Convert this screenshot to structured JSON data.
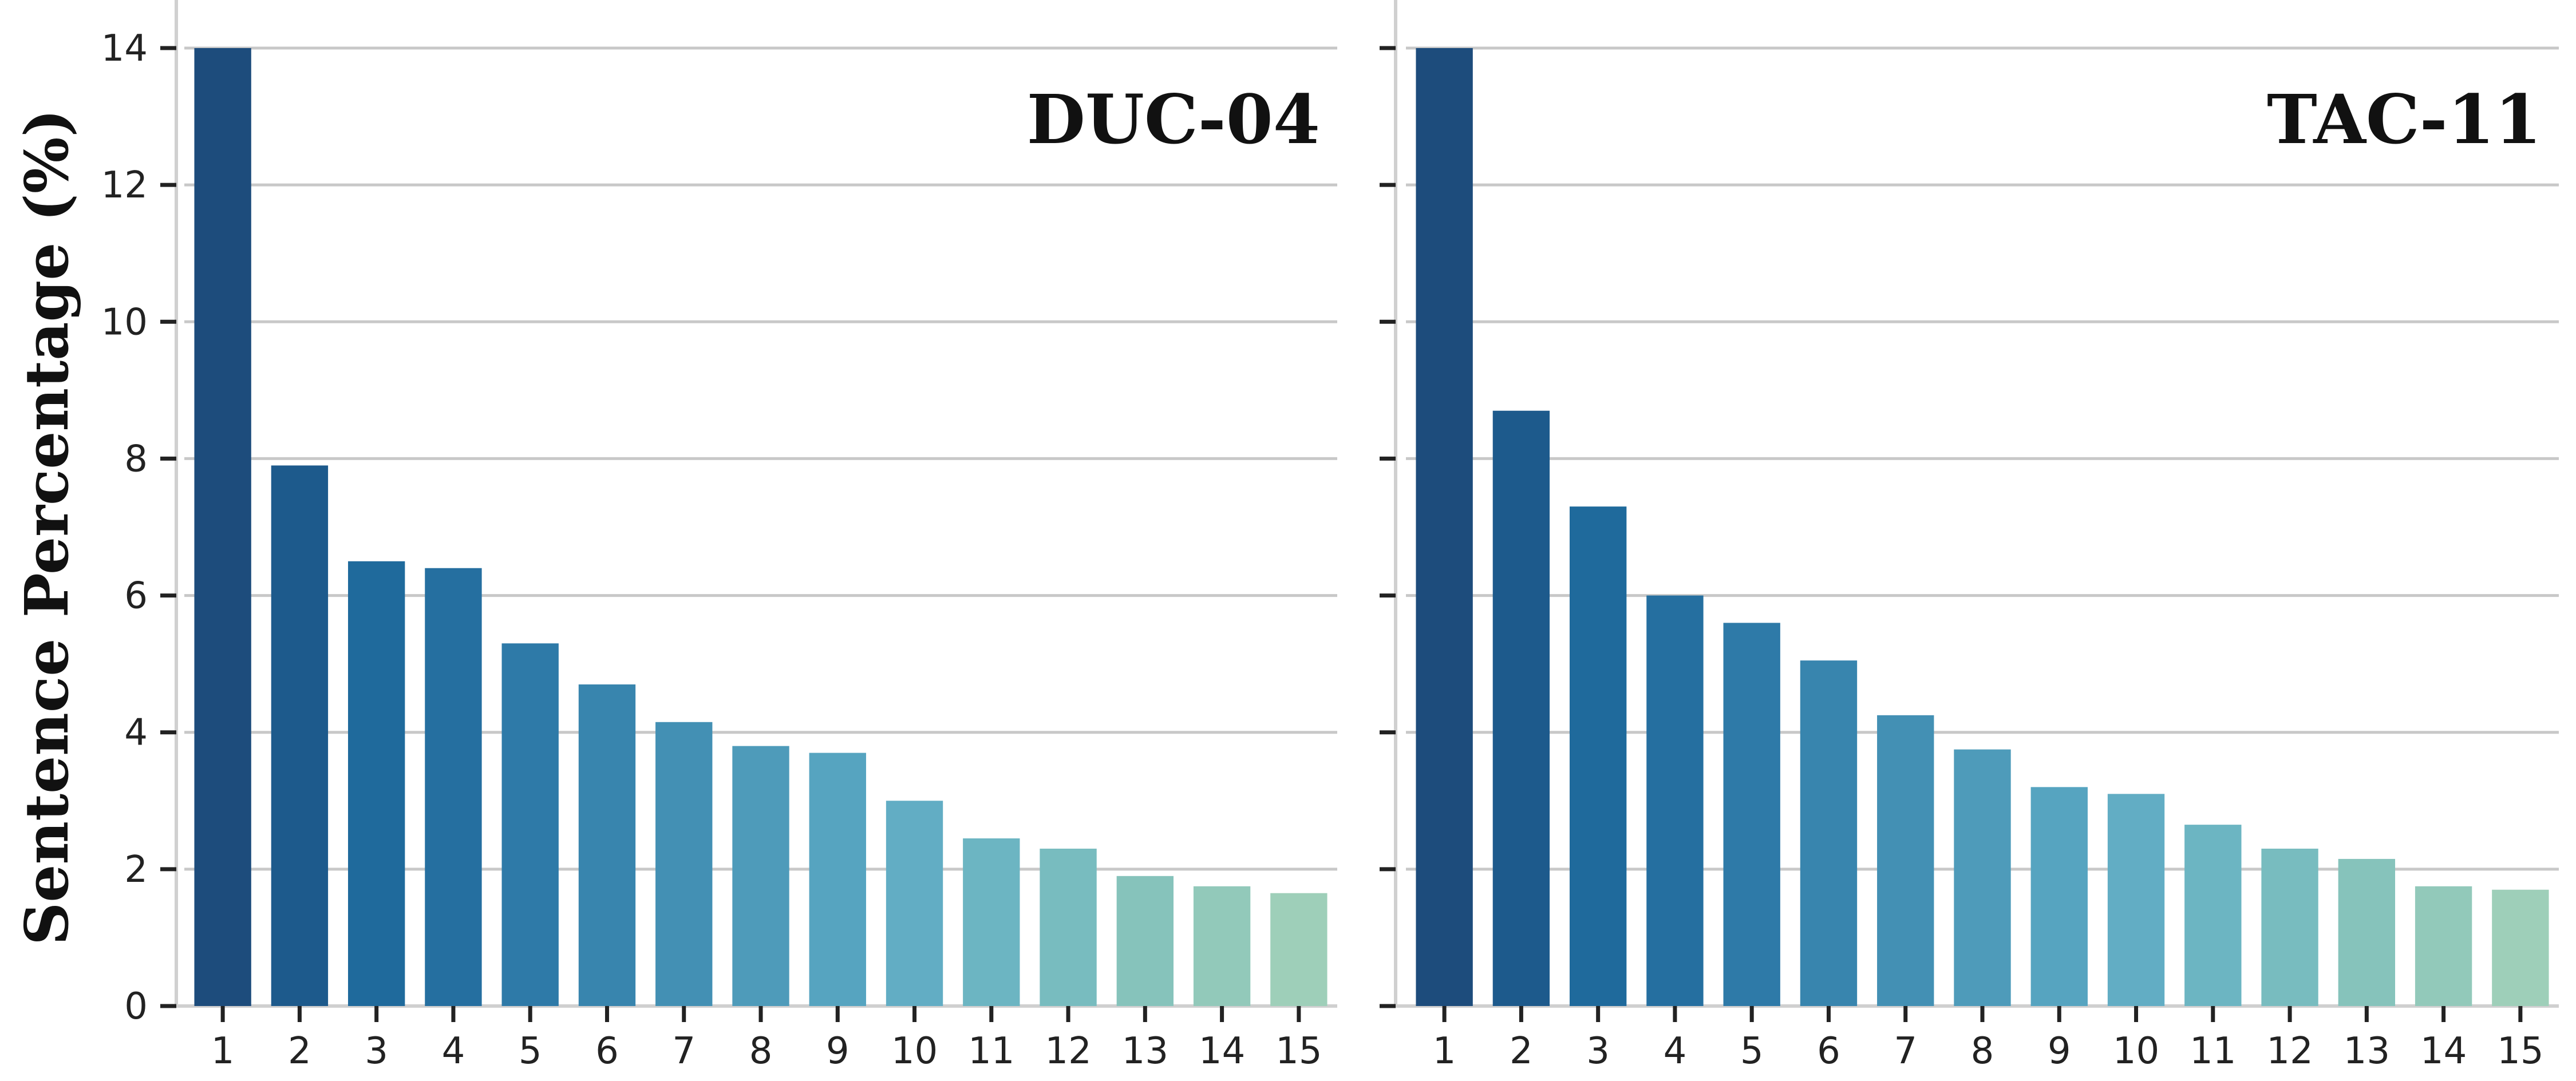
{
  "chart_data": [
    {
      "type": "bar",
      "title": "DUC-04",
      "xlabel": "",
      "ylabel": "Sentence Percentage (%)",
      "categories": [
        "1",
        "2",
        "3",
        "4",
        "5",
        "6",
        "7",
        "8",
        "9",
        "10",
        "11",
        "12",
        "13",
        "14",
        "15"
      ],
      "values": [
        14.0,
        7.9,
        6.5,
        6.4,
        5.3,
        4.7,
        4.15,
        3.8,
        3.7,
        3.0,
        2.45,
        2.3,
        1.9,
        1.75,
        1.65
      ],
      "ylim": [
        0,
        14.5
      ],
      "yticks": [
        0,
        2,
        4,
        6,
        8,
        10,
        12,
        14
      ],
      "grid": "horizontal",
      "title_position": "top-right"
    },
    {
      "type": "bar",
      "title": "TAC-11",
      "xlabel": "",
      "ylabel": "",
      "categories": [
        "1",
        "2",
        "3",
        "4",
        "5",
        "6",
        "7",
        "8",
        "9",
        "10",
        "11",
        "12",
        "13",
        "14",
        "15"
      ],
      "values": [
        14.0,
        8.7,
        7.3,
        6.0,
        5.6,
        5.05,
        4.25,
        3.75,
        3.2,
        3.1,
        2.65,
        2.3,
        2.15,
        1.75,
        1.7
      ],
      "ylim": [
        0,
        14.5
      ],
      "yticks": [
        0,
        2,
        4,
        6,
        8,
        10,
        12,
        14
      ],
      "grid": "horizontal",
      "title_position": "top-right"
    }
  ],
  "colors": {
    "bars": [
      "#1d4c7c",
      "#1d5a8c",
      "#1f6a9c",
      "#256fa0",
      "#2e7aa8",
      "#3885ae",
      "#4390b4",
      "#4e9bba",
      "#56a4c0",
      "#62adc4",
      "#6cb5c2",
      "#78bcbf",
      "#86c3bb",
      "#92c9ba",
      "#9ecfb9"
    ],
    "grid": "#c8c8c8",
    "axis": "#d0d0d0",
    "tick": "#222222"
  }
}
